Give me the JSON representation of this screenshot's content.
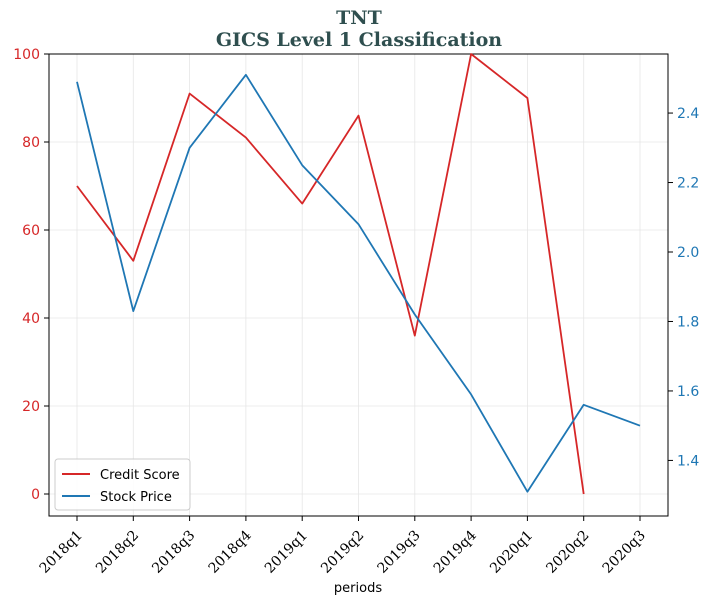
{
  "chart_data": {
    "type": "line",
    "title": "TNT",
    "subtitle": "GICS Level 1 Classification",
    "xlabel": "periods",
    "categories": [
      "2018q1",
      "2018q2",
      "2018q3",
      "2018q4",
      "2019q1",
      "2019q2",
      "2019q3",
      "2019q4",
      "2020q1",
      "2020q2",
      "2020q3"
    ],
    "series": [
      {
        "name": "Credit Score",
        "axis": "left",
        "color": "#d62728",
        "values": [
          70,
          53,
          91,
          81,
          66,
          86,
          36,
          100,
          90,
          0,
          null
        ]
      },
      {
        "name": "Stock Price",
        "axis": "right",
        "color": "#1f77b4",
        "values": [
          2.49,
          1.83,
          2.3,
          2.51,
          2.25,
          2.08,
          1.82,
          1.59,
          1.31,
          1.56,
          1.5
        ]
      }
    ],
    "y_left": {
      "ylim": [
        -5,
        100
      ],
      "ticks": [
        0,
        20,
        40,
        60,
        80,
        100
      ],
      "tick_labels": [
        "0",
        "20",
        "40",
        "60",
        "80",
        "100"
      ],
      "color": "#d62728"
    },
    "y_right": {
      "ylim": [
        1.24,
        2.57
      ],
      "ticks": [
        1.4,
        1.6,
        1.8,
        2.0,
        2.2,
        2.4
      ],
      "tick_labels": [
        "1.4",
        "1.6",
        "1.8",
        "2.0",
        "2.2",
        "2.4"
      ],
      "color": "#1f77b4"
    },
    "grid": true,
    "legend": {
      "placement": "lower-left",
      "entries": [
        "Credit Score",
        "Stock Price"
      ]
    }
  }
}
